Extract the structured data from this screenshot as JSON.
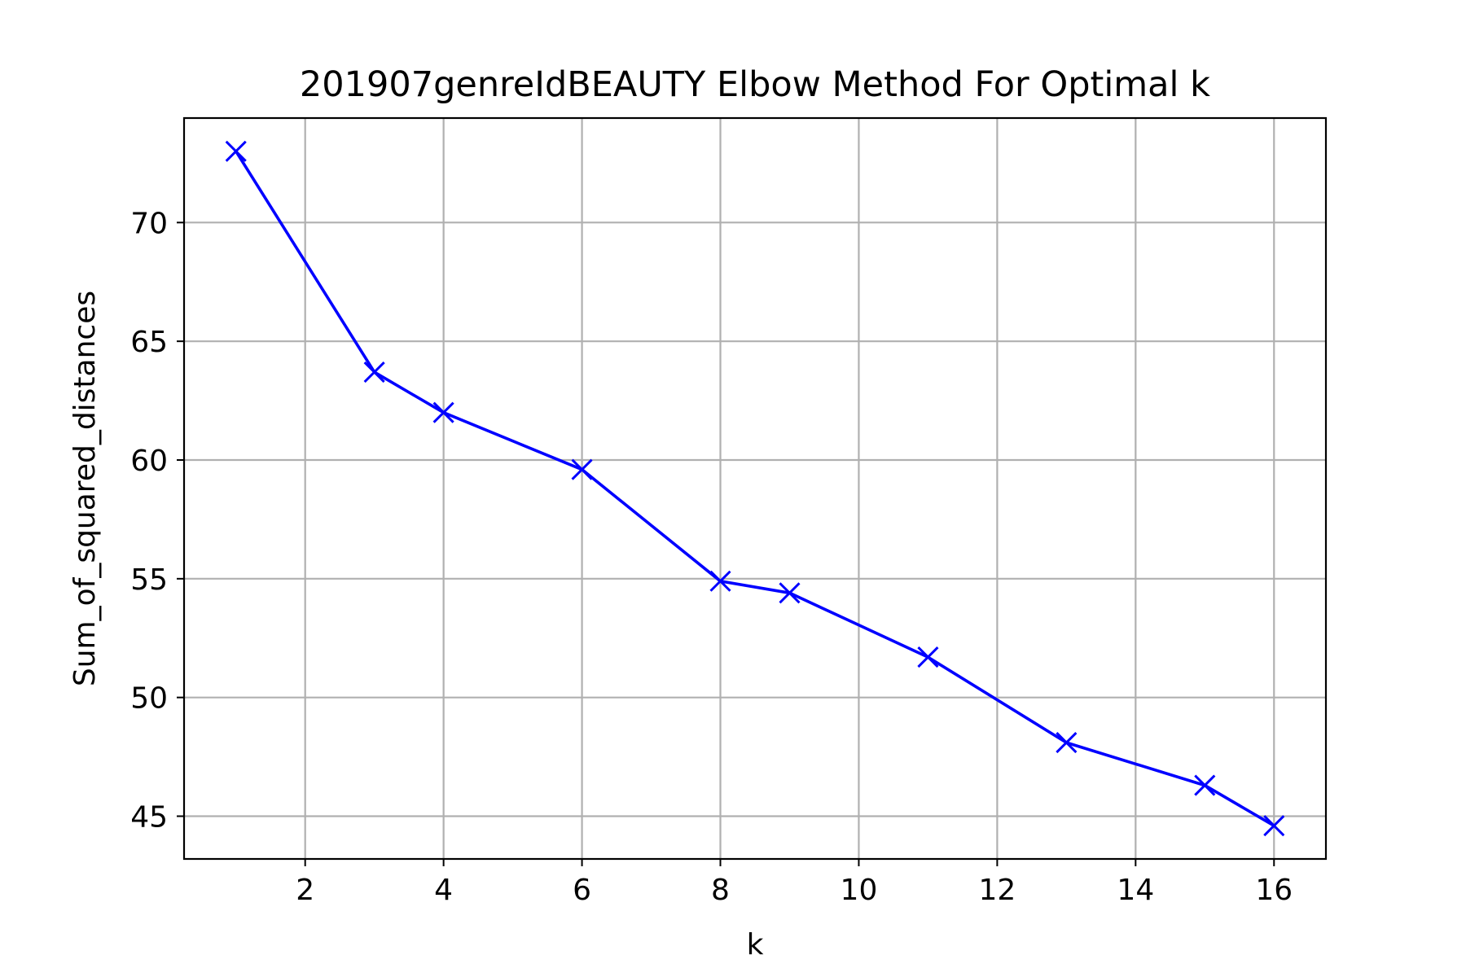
{
  "chart_data": {
    "type": "line",
    "title": "201907genreIdBEAUTY Elbow Method For Optimal k",
    "xlabel": "k",
    "ylabel": "Sum_of_squared_distances",
    "xlim": [
      0.25,
      16.75
    ],
    "ylim": [
      43.2,
      74.4
    ],
    "xticks": [
      2,
      4,
      6,
      8,
      10,
      12,
      14,
      16
    ],
    "yticks": [
      45,
      50,
      55,
      60,
      65,
      70
    ],
    "grid": true,
    "series": [
      {
        "marker": "x",
        "color": "#0000ff",
        "x": [
          1,
          3,
          4,
          6,
          8,
          9,
          11,
          13,
          15,
          16
        ],
        "y": [
          73.0,
          63.7,
          62.0,
          59.6,
          54.9,
          54.4,
          51.7,
          48.1,
          46.3,
          44.6
        ]
      }
    ]
  }
}
